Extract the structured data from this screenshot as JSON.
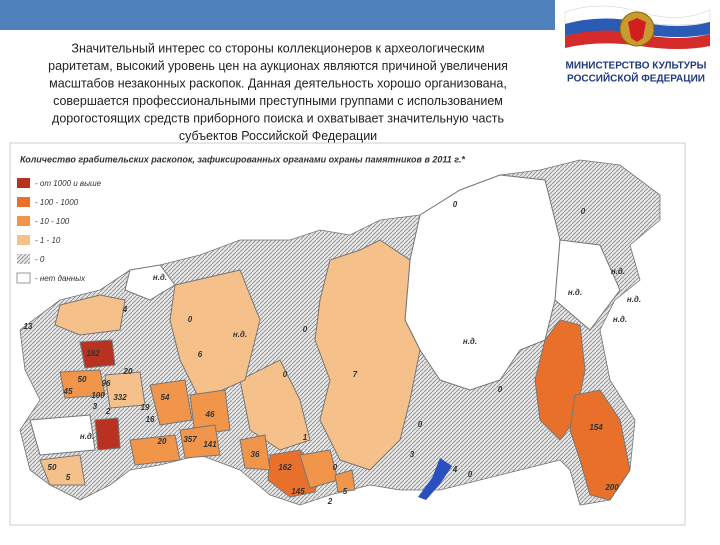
{
  "header": {
    "ministry_lines": [
      "МИНИСТЕРСТВО КУЛЬТУРЫ",
      "РОССИЙСКОЙ ФЕДЕРАЦИИ"
    ]
  },
  "paragraph": {
    "lines": [
      "Значительный интерес со стороны коллекционеров к археологическим",
      "раритетам, высокий уровень цен на аукционах являются причиной увеличения",
      "масштабов незаконных раскопок. Данная деятельность хорошо организована,",
      "совершается профессиональными преступными группами с использованием",
      "дорогостоящих средств приборного поиска и охватывает значительную  часть",
      "субъектов Российской Федерации"
    ]
  },
  "map": {
    "title": "Количество грабительских раскопок, зафиксированных органами охраны памятников в 2011 г.*",
    "legend": [
      "- от 1000 и выше",
      "- 100 - 1000",
      "- 10 - 100",
      "- 1 - 10",
      "- 0",
      "- нет данных"
    ],
    "labels": [
      "н.д.",
      "0",
      "0",
      "н.д.",
      "н.д.",
      "н.д.",
      "н.д.",
      "н.д.",
      "7",
      "0",
      "0",
      "1",
      "13",
      "4",
      "182",
      "6",
      "0",
      "20",
      "50",
      "45",
      "96",
      "100",
      "332",
      "54",
      "19",
      "16",
      "46",
      "2",
      "3",
      "н.д.",
      "20",
      "357",
      "141",
      "36",
      "162",
      "145",
      "0",
      "2",
      "3",
      "4",
      "154",
      "200",
      "5",
      "50",
      "5",
      "0",
      "н.д.",
      "0",
      "0"
    ]
  }
}
